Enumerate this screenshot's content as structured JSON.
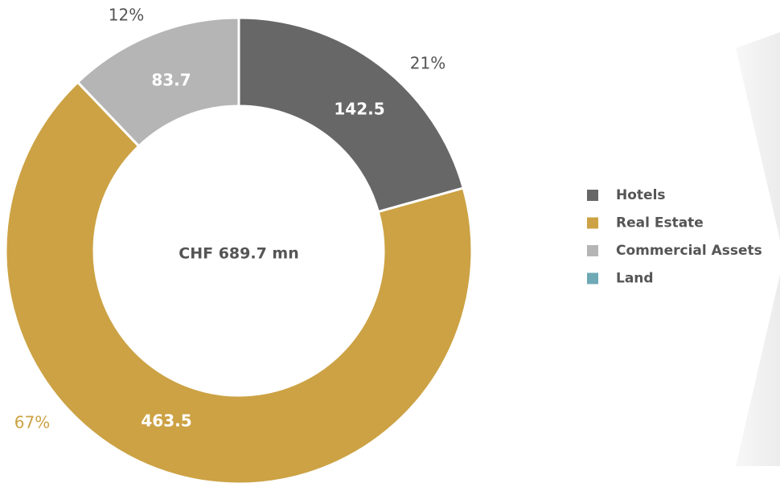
{
  "chart_data": {
    "type": "donut",
    "center_label": "CHF 689.7 mn",
    "categories": [
      "Hotels",
      "Real Estate",
      "Commercial Assets",
      "Land"
    ],
    "values": [
      142.5,
      463.5,
      83.7,
      0
    ],
    "colors": [
      "#676767",
      "#cca244",
      "#b5b5b5",
      "#6ea9b5"
    ],
    "shares": [
      21,
      67,
      12,
      null
    ],
    "share_labels": [
      "21%",
      "67%",
      "12%",
      null
    ],
    "share_colors": [
      "#555555",
      "#cca244",
      "#555555",
      null
    ],
    "legend": "right"
  }
}
